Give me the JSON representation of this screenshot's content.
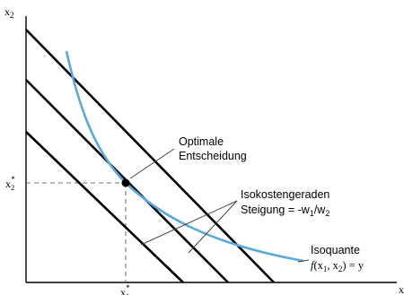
{
  "axes": {
    "y_label": "x",
    "y_sub": "2",
    "x_label": "x",
    "x_sub": "",
    "y_tick": "x",
    "y_tick_sub": "2",
    "y_tick_sup": "*",
    "x_tick": "x",
    "x_tick_sub": "1",
    "x_tick_sup": "*"
  },
  "labels": {
    "optimum_line1": "Optimale",
    "optimum_line2": "Entscheidung",
    "isocost_line1": "Isokostengeraden",
    "isocost_line2_pre": "Steigung = -w",
    "isocost_line2_sub1": "1",
    "isocost_line2_mid": "/w",
    "isocost_line2_sub2": "2",
    "isoquant_title": "Isoquante",
    "isoquant_formula_f": "f",
    "isoquant_formula_x1": "(x",
    "isoquant_formula_s1": "1",
    "isoquant_formula_x2": ", x",
    "isoquant_formula_s2": "2",
    "isoquant_formula_end": ") = y"
  },
  "colors": {
    "isoquant": "#5aa9d6",
    "isocost": "#000000"
  }
}
